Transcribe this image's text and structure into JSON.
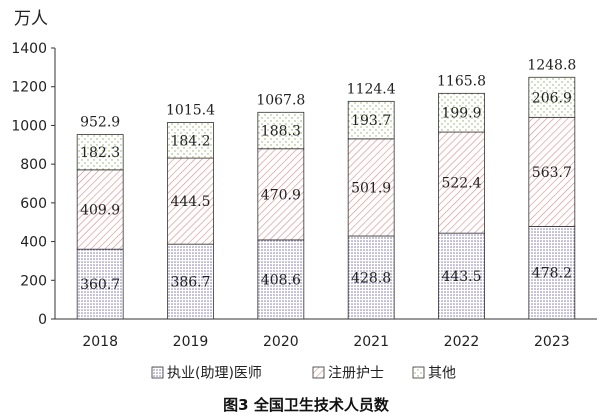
{
  "chart_data": {
    "type": "bar",
    "stacked": true,
    "title": "图3 全国卫生技术人员数",
    "ylabel": "万人",
    "xlabel": "",
    "ylim": [
      0,
      1400
    ],
    "yticks": [
      0,
      200,
      400,
      600,
      800,
      1000,
      1200,
      1400
    ],
    "categories": [
      "2018",
      "2019",
      "2020",
      "2021",
      "2022",
      "2023"
    ],
    "series": [
      {
        "name": "执业(助理)医师",
        "values": [
          360.7,
          386.7,
          408.6,
          428.8,
          443.5,
          478.2
        ],
        "pattern": "dots",
        "color": "#7b6fa8"
      },
      {
        "name": "注册护士",
        "values": [
          409.9,
          444.5,
          470.9,
          501.9,
          522.4,
          563.7
        ],
        "pattern": "diagonal",
        "color": "#d98b8b"
      },
      {
        "name": "其他",
        "values": [
          182.3,
          184.2,
          188.3,
          193.7,
          199.9,
          206.9
        ],
        "pattern": "specks",
        "color": "#8fae5a"
      }
    ],
    "totals": [
      952.9,
      1015.4,
      1067.8,
      1124.4,
      1165.8,
      1248.8
    ],
    "legend_position": "bottom",
    "grid": false
  }
}
